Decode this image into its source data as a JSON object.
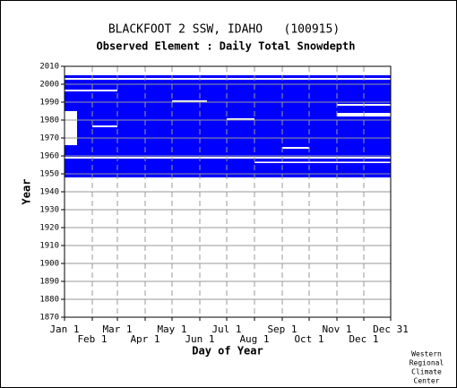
{
  "chart_data": {
    "type": "coverage",
    "title": "BLACKFOOT 2 SSW, IDAHO   (100915)",
    "subtitle": "Observed Element : Daily Total Snowdepth",
    "xlabel": "Day of Year",
    "ylabel": "Year",
    "xlim": [
      1,
      365
    ],
    "ylim": [
      1870,
      2010
    ],
    "xticks": [
      {
        "value": 1,
        "label": "Jan 1"
      },
      {
        "value": 32,
        "label": "Feb 1"
      },
      {
        "value": 60,
        "label": "Mar 1"
      },
      {
        "value": 91,
        "label": "Apr 1"
      },
      {
        "value": 121,
        "label": "May 1"
      },
      {
        "value": 152,
        "label": "Jun 1"
      },
      {
        "value": 182,
        "label": "Jul 1"
      },
      {
        "value": 213,
        "label": "Aug 1"
      },
      {
        "value": 244,
        "label": "Sep 1"
      },
      {
        "value": 274,
        "label": "Oct 1"
      },
      {
        "value": 305,
        "label": "Nov 1"
      },
      {
        "value": 335,
        "label": "Dec 1"
      },
      {
        "value": 365,
        "label": "Dec 31"
      }
    ],
    "yticks": [
      1870,
      1880,
      1890,
      1900,
      1910,
      1920,
      1930,
      1940,
      1950,
      1960,
      1970,
      1980,
      1990,
      2000,
      2010
    ],
    "color": "#0000ff",
    "missing_color": "#ffffff",
    "grid": true,
    "present": [
      {
        "x0": 1,
        "x1": 365,
        "y0": 1948,
        "y1": 2005
      }
    ],
    "missing": [
      {
        "x0": 1,
        "x1": 365,
        "y0": 1958.5,
        "y1": 1959.5
      },
      {
        "x0": 213,
        "x1": 365,
        "y0": 1956,
        "y1": 1956.8
      },
      {
        "x0": 1,
        "x1": 15,
        "y0": 1966,
        "y1": 1985
      },
      {
        "x0": 32,
        "x1": 60,
        "y0": 1976,
        "y1": 1977
      },
      {
        "x0": 121,
        "x1": 160,
        "y0": 1990,
        "y1": 1991
      },
      {
        "x0": 305,
        "x1": 365,
        "y0": 1982,
        "y1": 1984
      },
      {
        "x0": 305,
        "x1": 365,
        "y0": 1988,
        "y1": 1989
      },
      {
        "x0": 1,
        "x1": 60,
        "y0": 1996,
        "y1": 1997
      },
      {
        "x0": 182,
        "x1": 213,
        "y0": 1980,
        "y1": 1981
      },
      {
        "x0": 244,
        "x1": 274,
        "y0": 1964,
        "y1": 1965
      },
      {
        "x0": 1,
        "x1": 365,
        "y0": 2002.5,
        "y1": 2003.5
      }
    ],
    "credit": [
      "Western",
      "Regional",
      "Climate",
      "Center"
    ]
  }
}
